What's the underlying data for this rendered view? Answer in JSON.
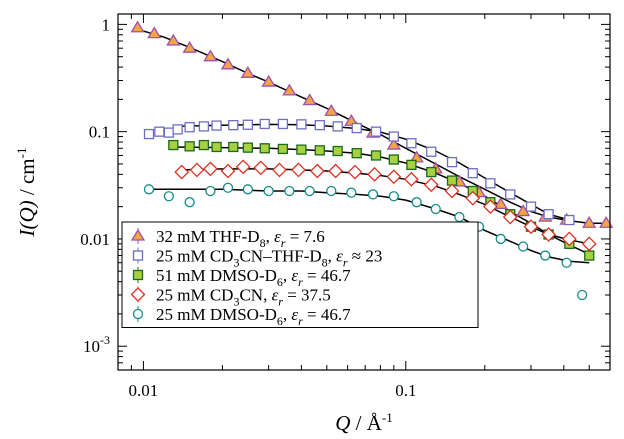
{
  "chart_data": {
    "type": "scatter",
    "xscale": "log",
    "yscale": "log",
    "xlim": [
      0.008,
      0.6
    ],
    "ylim": [
      0.0006,
      1.25
    ],
    "xlabel": {
      "italic": "Q",
      "plain": " / Å",
      "sup": "-1"
    },
    "ylabel": {
      "italic": "I(Q)",
      "plain": " / cm",
      "sup": "-1"
    },
    "x_ticks": [
      {
        "value": 0.01,
        "label": "0.01"
      },
      {
        "value": 0.1,
        "label": "0.1"
      }
    ],
    "y_ticks": [
      {
        "value": 1,
        "label": "1"
      },
      {
        "value": 0.1,
        "label": "0.1"
      },
      {
        "value": 0.01,
        "label": "0.01"
      },
      {
        "value": 0.001,
        "label": "10",
        "sup": "-3"
      }
    ],
    "grid": false,
    "legend_position": "bottom-left",
    "series": [
      {
        "name": "32 mM THF-D8, εr = 7.6",
        "legend": [
          {
            "t": "32 mM THF-D"
          },
          {
            "t": "8",
            "sub": true
          },
          {
            "t": ", "
          },
          {
            "t": "ε",
            "it": true
          },
          {
            "t": "r",
            "it": true,
            "sub": true
          },
          {
            "t": " = 7.6"
          }
        ],
        "marker": "triangle",
        "stroke": "#a050b0",
        "fill": "#f2a640",
        "x": [
          0.0095,
          0.011,
          0.013,
          0.015,
          0.018,
          0.021,
          0.025,
          0.03,
          0.036,
          0.043,
          0.052,
          0.062,
          0.075,
          0.09,
          0.11,
          0.13,
          0.16,
          0.19,
          0.23,
          0.28,
          0.34,
          0.41,
          0.5,
          0.58
        ],
        "y": [
          0.93,
          0.82,
          0.7,
          0.6,
          0.5,
          0.42,
          0.35,
          0.29,
          0.24,
          0.195,
          0.155,
          0.125,
          0.097,
          0.075,
          0.057,
          0.045,
          0.034,
          0.027,
          0.021,
          0.018,
          0.016,
          0.015,
          0.014,
          0.014
        ]
      },
      {
        "name": "25 mM CD3CN–THF-D8, εr ≈ 23",
        "legend": [
          {
            "t": "25 mM CD"
          },
          {
            "t": "3",
            "sub": true
          },
          {
            "t": "CN–THF-D"
          },
          {
            "t": "8",
            "sub": true
          },
          {
            "t": ", "
          },
          {
            "t": "ε",
            "it": true
          },
          {
            "t": "r",
            "it": true,
            "sub": true
          },
          {
            "t": " ≈ 23"
          }
        ],
        "marker": "square",
        "stroke": "#6d6dc6",
        "fill": "none",
        "x": [
          0.0105,
          0.0115,
          0.0125,
          0.0135,
          0.015,
          0.017,
          0.019,
          0.022,
          0.025,
          0.029,
          0.034,
          0.04,
          0.047,
          0.055,
          0.065,
          0.077,
          0.09,
          0.105,
          0.125,
          0.15,
          0.18,
          0.21,
          0.25,
          0.3,
          0.35,
          0.42
        ],
        "y": [
          0.095,
          0.1,
          0.098,
          0.105,
          0.11,
          0.112,
          0.114,
          0.115,
          0.116,
          0.118,
          0.118,
          0.117,
          0.115,
          0.112,
          0.108,
          0.1,
          0.09,
          0.078,
          0.065,
          0.052,
          0.041,
          0.033,
          0.026,
          0.02,
          0.017,
          0.015
        ]
      },
      {
        "name": "51 mM DMSO-D6, εr = 46.7",
        "legend": [
          {
            "t": "51 mM DMSO-D"
          },
          {
            "t": "6",
            "sub": true
          },
          {
            "t": ", "
          },
          {
            "t": "ε",
            "it": true
          },
          {
            "t": "r",
            "it": true,
            "sub": true
          },
          {
            "t": " = 46.7"
          }
        ],
        "marker": "square",
        "stroke": "#1a6b1a",
        "fill": "#a8d040",
        "x": [
          0.013,
          0.015,
          0.017,
          0.019,
          0.022,
          0.025,
          0.029,
          0.034,
          0.04,
          0.047,
          0.055,
          0.065,
          0.077,
          0.09,
          0.105,
          0.125,
          0.15,
          0.18,
          0.21,
          0.25,
          0.3,
          0.35,
          0.42,
          0.5
        ],
        "y": [
          0.075,
          0.073,
          0.075,
          0.072,
          0.072,
          0.071,
          0.07,
          0.069,
          0.068,
          0.067,
          0.066,
          0.063,
          0.06,
          0.055,
          0.049,
          0.042,
          0.035,
          0.028,
          0.022,
          0.017,
          0.013,
          0.011,
          0.009,
          0.007
        ]
      },
      {
        "name": "25 mM CD3CN, εr = 37.5",
        "legend": [
          {
            "t": "25 mM CD"
          },
          {
            "t": "3",
            "sub": true
          },
          {
            "t": "CN, "
          },
          {
            "t": "ε",
            "it": true
          },
          {
            "t": "r",
            "it": true,
            "sub": true
          },
          {
            "t": " = 37.5"
          }
        ],
        "marker": "diamond",
        "stroke": "#e03020",
        "fill": "none",
        "x": [
          0.014,
          0.016,
          0.018,
          0.021,
          0.024,
          0.028,
          0.033,
          0.039,
          0.046,
          0.054,
          0.064,
          0.076,
          0.09,
          0.105,
          0.125,
          0.15,
          0.18,
          0.21,
          0.25,
          0.3,
          0.35,
          0.42,
          0.5
        ],
        "y": [
          0.042,
          0.044,
          0.045,
          0.043,
          0.047,
          0.046,
          0.044,
          0.044,
          0.043,
          0.043,
          0.042,
          0.04,
          0.038,
          0.036,
          0.032,
          0.028,
          0.024,
          0.02,
          0.016,
          0.013,
          0.011,
          0.01,
          0.009
        ]
      },
      {
        "name": "25 mM DMSO-D6, εr = 46.7",
        "legend": [
          {
            "t": "25 mM DMSO-D"
          },
          {
            "t": "6",
            "sub": true
          },
          {
            "t": ", "
          },
          {
            "t": "ε",
            "it": true
          },
          {
            "t": "r",
            "it": true,
            "sub": true
          },
          {
            "t": " = 46.7"
          }
        ],
        "marker": "circle",
        "stroke": "#158c8c",
        "fill": "none",
        "x": [
          0.0105,
          0.0125,
          0.015,
          0.018,
          0.021,
          0.025,
          0.03,
          0.036,
          0.043,
          0.052,
          0.062,
          0.075,
          0.09,
          0.11,
          0.13,
          0.16,
          0.19,
          0.23,
          0.28,
          0.34,
          0.41,
          0.47
        ],
        "y": [
          0.029,
          0.025,
          0.022,
          0.028,
          0.03,
          0.029,
          0.028,
          0.028,
          0.028,
          0.028,
          0.027,
          0.026,
          0.025,
          0.022,
          0.019,
          0.016,
          0.013,
          0.01,
          0.0085,
          0.007,
          0.006,
          0.003
        ]
      }
    ],
    "fit_lines": [
      {
        "color": "#000000",
        "x": [
          0.0095,
          0.012,
          0.015,
          0.02,
          0.025,
          0.03,
          0.04,
          0.05,
          0.065,
          0.08,
          0.1,
          0.13,
          0.16,
          0.2,
          0.25,
          0.3,
          0.35,
          0.42,
          0.5,
          0.58
        ],
        "y": [
          0.9,
          0.76,
          0.61,
          0.45,
          0.35,
          0.29,
          0.21,
          0.165,
          0.12,
          0.094,
          0.07,
          0.05,
          0.038,
          0.029,
          0.022,
          0.018,
          0.016,
          0.0148,
          0.014,
          0.014
        ]
      },
      {
        "color": "#000000",
        "x": [
          0.013,
          0.02,
          0.03,
          0.04,
          0.05,
          0.065,
          0.08,
          0.1,
          0.13,
          0.16,
          0.2,
          0.25,
          0.3,
          0.35,
          0.42
        ],
        "y": [
          0.112,
          0.115,
          0.117,
          0.116,
          0.113,
          0.107,
          0.099,
          0.085,
          0.066,
          0.051,
          0.037,
          0.027,
          0.021,
          0.017,
          0.015
        ]
      },
      {
        "color": "#000000",
        "x": [
          0.013,
          0.02,
          0.03,
          0.04,
          0.05,
          0.065,
          0.08,
          0.1,
          0.13,
          0.16,
          0.2,
          0.25,
          0.3,
          0.35,
          0.42,
          0.5
        ],
        "y": [
          0.072,
          0.071,
          0.07,
          0.068,
          0.066,
          0.063,
          0.058,
          0.051,
          0.041,
          0.033,
          0.025,
          0.018,
          0.014,
          0.011,
          0.0088,
          0.0072
        ]
      },
      {
        "color": "#000000",
        "x": [
          0.014,
          0.02,
          0.03,
          0.04,
          0.05,
          0.065,
          0.08,
          0.1,
          0.13,
          0.16,
          0.2,
          0.25,
          0.3,
          0.35,
          0.42,
          0.5
        ],
        "y": [
          0.044,
          0.045,
          0.045,
          0.044,
          0.043,
          0.041,
          0.039,
          0.036,
          0.031,
          0.026,
          0.021,
          0.016,
          0.013,
          0.011,
          0.0098,
          0.009
        ]
      },
      {
        "color": "#000000",
        "x": [
          0.0105,
          0.015,
          0.02,
          0.03,
          0.04,
          0.05,
          0.065,
          0.08,
          0.1,
          0.13,
          0.16,
          0.2,
          0.25,
          0.3,
          0.35,
          0.42,
          0.5
        ],
        "y": [
          0.029,
          0.029,
          0.029,
          0.028,
          0.028,
          0.027,
          0.026,
          0.025,
          0.023,
          0.019,
          0.016,
          0.012,
          0.0095,
          0.0078,
          0.0068,
          0.0062,
          0.006
        ]
      }
    ]
  }
}
